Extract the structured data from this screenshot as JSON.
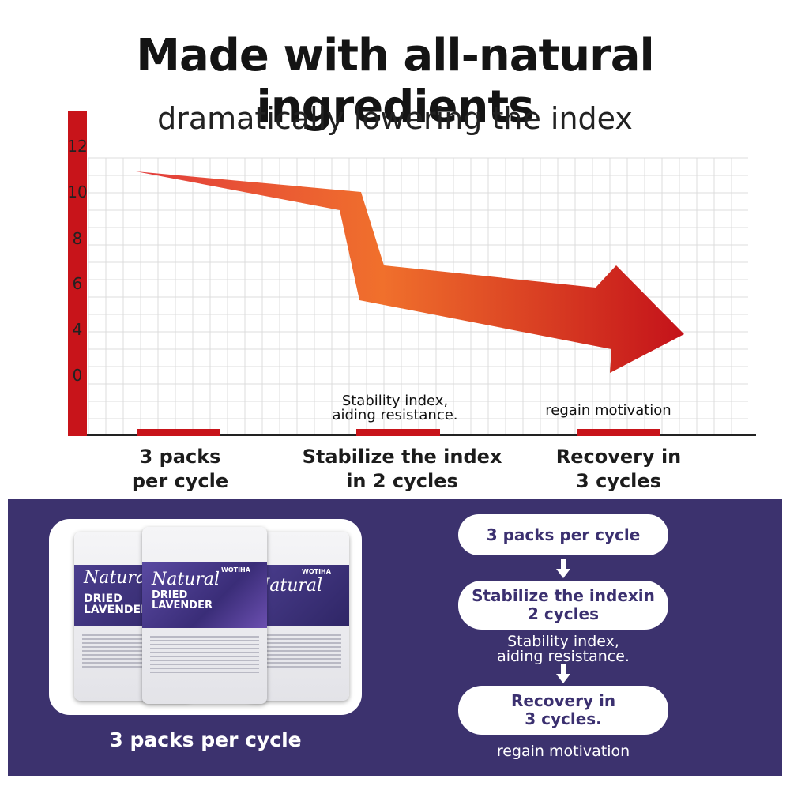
{
  "header": {
    "title": "Made with all-natural ingredients",
    "subtitle": "dramatically lowering the index"
  },
  "chart": {
    "y_ticks": [
      "12",
      "10",
      "8",
      "6",
      "4",
      "0"
    ],
    "stages": [
      {
        "label_line1": "3 packs",
        "label_line2": "per cycle",
        "annotation_line1": "",
        "annotation_line2": ""
      },
      {
        "label_line1": "Stabilize the index",
        "label_line2": "in 2 cycles",
        "annotation_line1": "Stability index,",
        "annotation_line2": "aiding resistance."
      },
      {
        "label_line1": "Recovery in",
        "label_line2": "3 cycles",
        "annotation_line1": "regain motivation",
        "annotation_line2": ""
      }
    ],
    "colors": {
      "axis": "#c8141a",
      "arrow_start": "#e03a3a",
      "arrow_mid": "#f06a2a",
      "arrow_end": "#c8141a",
      "grid": "#dddddd"
    }
  },
  "product": {
    "packs": [
      {
        "natural": "Natural",
        "dried": "DRIED",
        "lavender": "LAVENDER",
        "brand": ""
      },
      {
        "natural": "Natural",
        "dried": "DRIED",
        "lavender": "LAVENDER",
        "brand": "WOTIHA"
      },
      {
        "natural": "Natural",
        "dried": "",
        "lavender": "",
        "brand": "WOTIHA"
      }
    ],
    "caption": "3 packs per cycle"
  },
  "steps": {
    "step1": "3 packs per cycle",
    "step2_line1": "Stabilize the indexin",
    "step2_line2": "2 cycles",
    "note1_line1": "Stability index,",
    "note1_line2": "aiding resistance.",
    "step3_line1": "Recovery in",
    "step3_line2": "3 cycles.",
    "note2": "regain motivation"
  },
  "colors": {
    "panel": "#3c326e",
    "pill_text": "#3b3070"
  }
}
